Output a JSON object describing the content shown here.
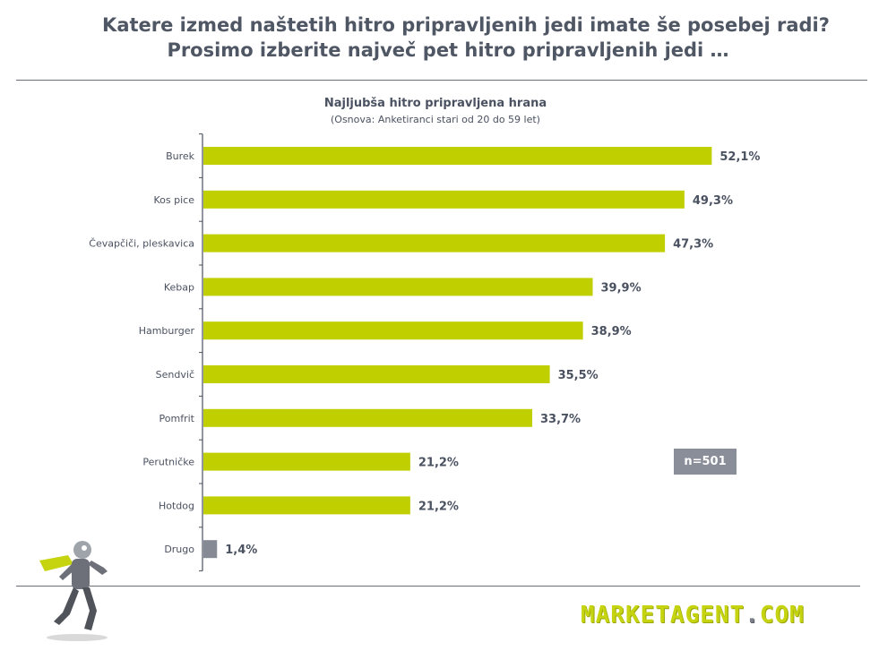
{
  "header": {
    "line1": "Katere izmed naštetih hitro pripravljenih jedi imate še posebej radi?",
    "line2": "Prosimo izberite največ pet hitro pripravljenih jedi …"
  },
  "chart_data": {
    "type": "bar",
    "orientation": "horizontal",
    "title": "Najljubša hitro pripravljena hrana",
    "subtitle": "(Osnova: Anketiranci stari od 20 do 59 let)",
    "categories": [
      "Burek",
      "Kos pice",
      "Čevapčiči, pleskavica",
      "Kebap",
      "Hamburger",
      "Sendvič",
      "Pomfrit",
      "Perutničke",
      "Hotdog",
      "Drugo"
    ],
    "values": [
      52.1,
      49.3,
      47.3,
      39.9,
      38.9,
      35.5,
      33.7,
      21.2,
      21.2,
      1.4
    ],
    "value_labels": [
      "52,1%",
      "49,3%",
      "47,3%",
      "39,9%",
      "38,9%",
      "35,5%",
      "33,7%",
      "21,2%",
      "21,2%",
      "1,4%"
    ],
    "bar_colors": [
      "#c0cf00",
      "#c0cf00",
      "#c0cf00",
      "#c0cf00",
      "#c0cf00",
      "#c0cf00",
      "#c0cf00",
      "#c0cf00",
      "#c0cf00",
      "#868a94"
    ],
    "xlim": [
      0,
      100
    ],
    "grid": false
  },
  "badge": {
    "label": "n=501"
  },
  "logo": {
    "main": "MARKETAGENT",
    "dot": ".",
    "suffix": "COM"
  },
  "colors": {
    "bar": "#c0cf00",
    "other_bar": "#868a94",
    "text": "#4a5160"
  }
}
